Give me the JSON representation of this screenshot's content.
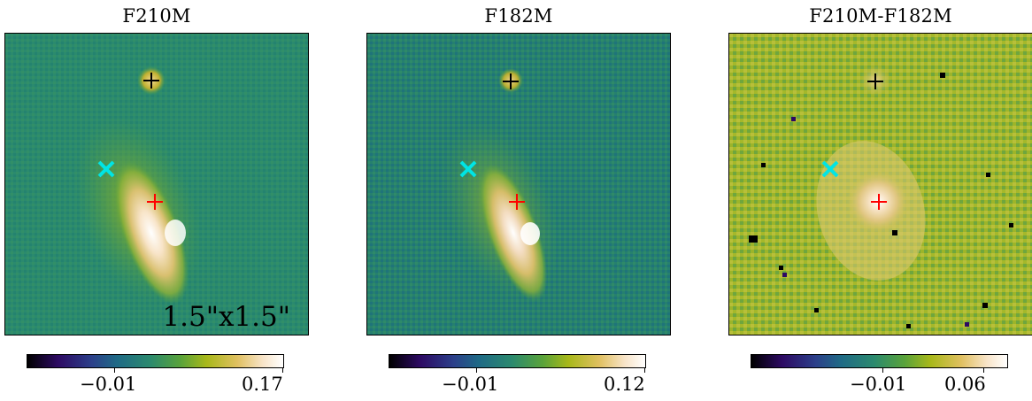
{
  "panels": [
    {
      "title": "F210M",
      "scale_label": "1.5\"x1.5\"",
      "colorbar": {
        "ticks": [
          "−0.01",
          "0.17"
        ]
      },
      "style": "f210"
    },
    {
      "title": "F182M",
      "scale_label": "",
      "colorbar": {
        "ticks": [
          "−0.01",
          "0.12"
        ]
      },
      "style": "f182"
    },
    {
      "title": "F210M-F182M",
      "scale_label": "",
      "colorbar": {
        "ticks": [
          "−0.01",
          "0.06"
        ]
      },
      "style": "diff"
    }
  ],
  "markers": {
    "black_plus_color": "#000000",
    "red_plus_color": "#ff0000",
    "cyan_x_color": "#00e5e5"
  },
  "colormap": [
    "#000000",
    "#2d0a63",
    "#2c3f8a",
    "#1f6a86",
    "#2b8a6e",
    "#5aa33a",
    "#a8b81a",
    "#e0c060",
    "#f8e4c8",
    "#ffffff"
  ]
}
